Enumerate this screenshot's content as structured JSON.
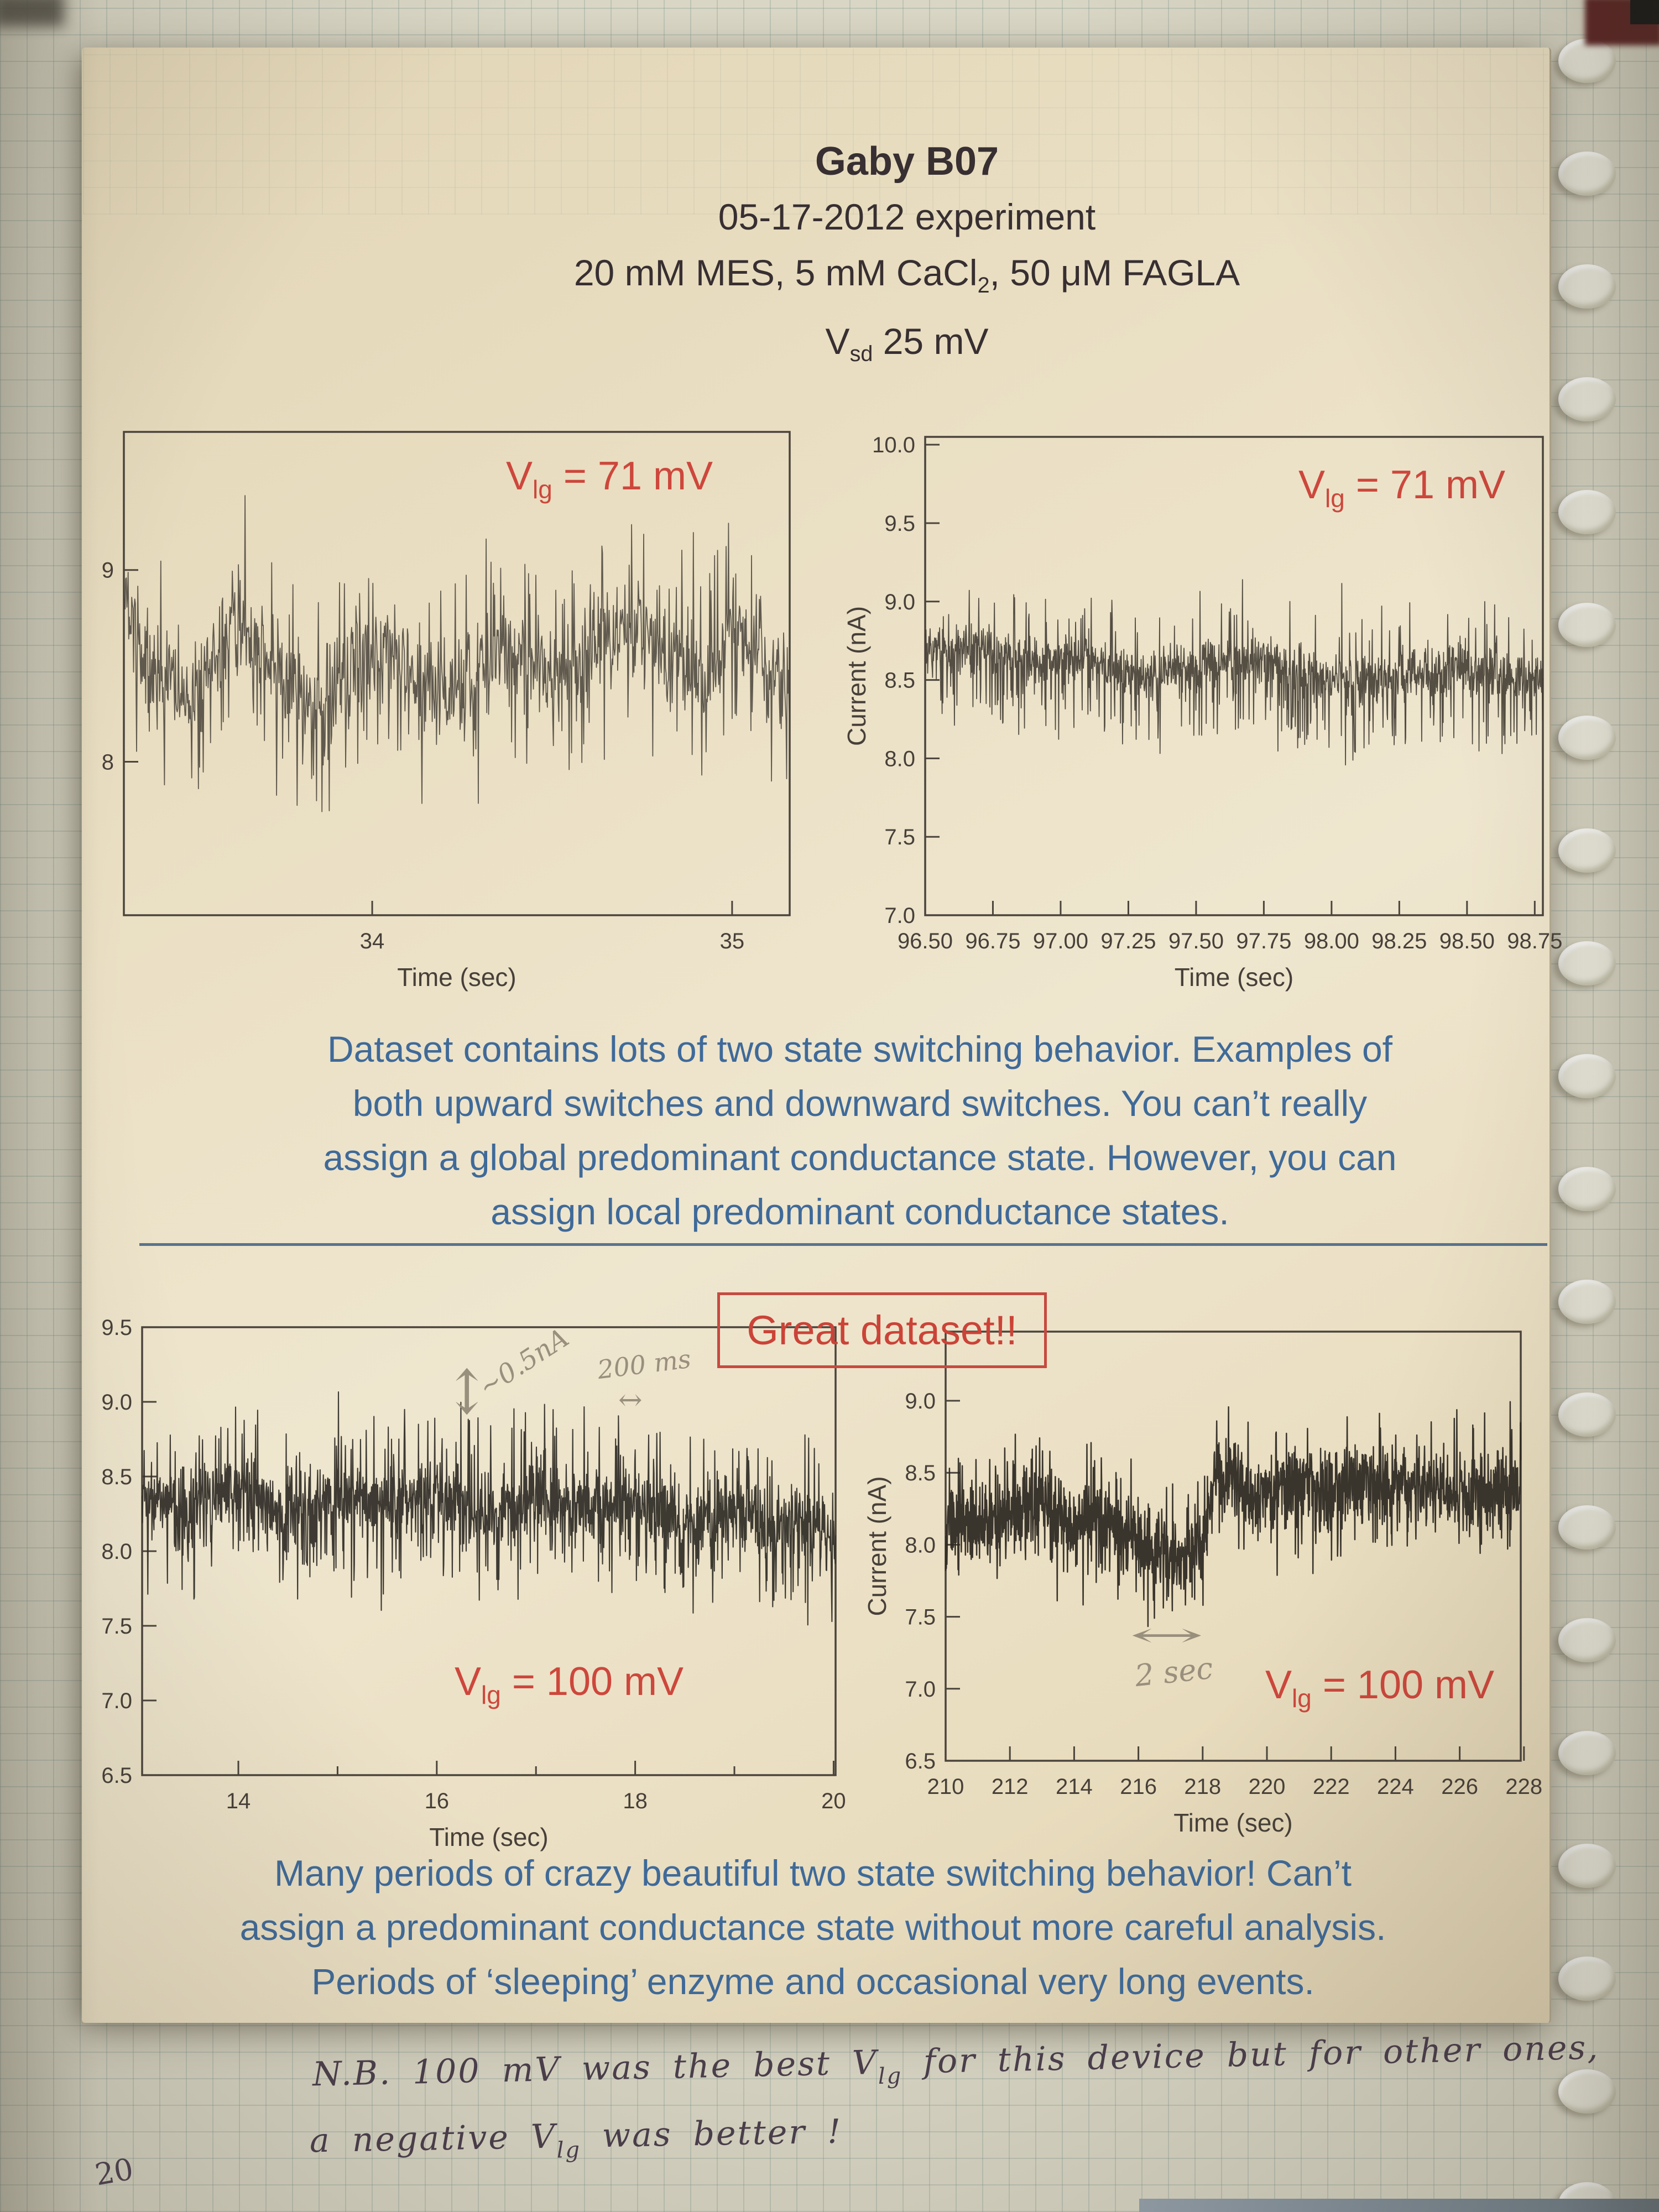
{
  "header": {
    "line1": "Gaby B07",
    "line2": "05-17-2012 experiment",
    "line3_a": "20 mM MES, 5 mM CaCl",
    "line3_sub": "2",
    "line3_b": ", 50 μM FAGLA",
    "line4_a": "V",
    "line4_sub": "sd",
    "line4_b": " 25 mV"
  },
  "paragraph1_lines": [
    "Dataset contains lots of two state switching behavior. Examples of",
    "both upward switches and downward switches. You can’t really",
    "assign a global predominant conductance state. However, you can",
    "assign local predominant conductance states."
  ],
  "callout": "Great dataset!!",
  "paragraph2_lines": [
    "Many periods of crazy beautiful two state switching behavior! Can’t",
    "assign a predominant conductance state without more careful analysis.",
    "Periods of ‘sleeping’ enzyme and occasional very long events."
  ],
  "pencil": {
    "amp": "~0.5nA",
    "updown_arrow": "↕",
    "ms": "200 ms",
    "lr_arrow_small": "↔",
    "lr_arrow_long": "↔",
    "sec": "2 sec"
  },
  "handwriting": {
    "line1_a": "N.B. 100 mV was the best V",
    "line1_sub": "lg",
    "line1_b": " for this device but for other ones,",
    "line2_a": "a negative V",
    "line2_sub": "lg",
    "line2_b": " was better !",
    "page_number": "20"
  },
  "colors": {
    "accent_red": "#cd473c",
    "caption_blue": "#3f6a99",
    "sheet_cream": "#eadfc3",
    "grid_paper": "#d9d6c5",
    "ink": "#4a3e4c"
  },
  "chart_data": [
    {
      "type": "line",
      "name": "top-left-trace",
      "xlabel": "Time (sec)",
      "ylabel": "",
      "xlim": [
        33.31,
        35.16
      ],
      "ylim": [
        7.2,
        9.72
      ],
      "xtick_labels": [
        "34",
        "35"
      ],
      "xtick_values": [
        34,
        35
      ],
      "minor_xticks": [],
      "ytick_labels": [
        "9",
        "8"
      ],
      "ytick_values": [
        9,
        8
      ],
      "vlg": {
        "v": "V",
        "sub": "lg",
        "rest": " = 71 mV"
      },
      "series": {
        "baseline": [
          [
            33.31,
            8.9
          ],
          [
            33.38,
            8.45
          ],
          [
            33.5,
            8.35
          ],
          [
            33.62,
            8.75
          ],
          [
            33.72,
            8.5
          ],
          [
            33.82,
            8.3
          ],
          [
            33.95,
            8.45
          ],
          [
            34.05,
            8.55
          ],
          [
            34.12,
            8.4
          ],
          [
            34.22,
            8.35
          ],
          [
            34.32,
            8.5
          ],
          [
            34.42,
            8.55
          ],
          [
            34.52,
            8.45
          ],
          [
            34.62,
            8.65
          ],
          [
            34.72,
            8.7
          ],
          [
            34.82,
            8.55
          ],
          [
            34.92,
            8.45
          ],
          [
            35.0,
            8.75
          ],
          [
            35.08,
            8.55
          ],
          [
            35.16,
            8.3
          ]
        ],
        "noise": 0.12,
        "spike_rate": 0.22,
        "spike_size": 0.5,
        "down_bias": 0.5,
        "points": 1100
      }
    },
    {
      "type": "line",
      "name": "top-right-trace",
      "xlabel": "Time (sec)",
      "ylabel": "Current (nA)",
      "xlim": [
        96.5,
        98.78
      ],
      "ylim": [
        7.0,
        10.05
      ],
      "xtick_labels": [
        "96.50",
        "96.75",
        "97.00",
        "97.25",
        "97.50",
        "97.75",
        "98.00",
        "98.25",
        "98.50",
        "98.75"
      ],
      "xtick_values": [
        96.5,
        96.75,
        97.0,
        97.25,
        97.5,
        97.75,
        98.0,
        98.25,
        98.5,
        98.75
      ],
      "minor_xticks": [],
      "ytick_labels": [
        "10.0",
        "9.5",
        "9.0",
        "8.5",
        "8.0",
        "7.5",
        "7.0"
      ],
      "ytick_values": [
        10.0,
        9.5,
        9.0,
        8.5,
        8.0,
        7.5,
        7.0
      ],
      "vlg": {
        "v": "V",
        "sub": "lg",
        "rest": " = 71 mV"
      },
      "series": {
        "baseline": [
          [
            96.5,
            8.68
          ],
          [
            96.7,
            8.72
          ],
          [
            96.9,
            8.6
          ],
          [
            97.1,
            8.65
          ],
          [
            97.3,
            8.55
          ],
          [
            97.5,
            8.6
          ],
          [
            97.7,
            8.65
          ],
          [
            97.9,
            8.55
          ],
          [
            98.1,
            8.5
          ],
          [
            98.3,
            8.55
          ],
          [
            98.5,
            8.6
          ],
          [
            98.6,
            8.5
          ],
          [
            98.78,
            8.55
          ]
        ],
        "noise": 0.075,
        "spike_rate": 0.2,
        "spike_size": 0.45,
        "down_bias": 0.75,
        "points": 1500
      }
    },
    {
      "type": "line",
      "name": "bottom-left-trace",
      "xlabel": "Time (sec)",
      "ylabel": "",
      "xlim": [
        13.03,
        20.02
      ],
      "ylim": [
        6.5,
        9.5
      ],
      "xtick_labels": [
        "14",
        "16",
        "18",
        "20"
      ],
      "xtick_values": [
        14,
        16,
        18,
        20
      ],
      "minor_xticks": [
        15,
        17,
        19
      ],
      "ytick_labels": [
        "9.5",
        "9.0",
        "8.5",
        "8.0",
        "7.5",
        "7.0",
        "6.5"
      ],
      "ytick_values": [
        9.5,
        9.0,
        8.5,
        8.0,
        7.5,
        7.0,
        6.5
      ],
      "vlg": {
        "v": "V",
        "sub": "lg",
        "rest": " = 100 mV"
      },
      "series": {
        "baseline": [
          [
            13.03,
            8.35
          ],
          [
            13.5,
            8.3
          ],
          [
            14,
            8.4
          ],
          [
            14.5,
            8.25
          ],
          [
            15,
            8.35
          ],
          [
            15.5,
            8.3
          ],
          [
            16,
            8.4
          ],
          [
            16.5,
            8.25
          ],
          [
            17,
            8.35
          ],
          [
            17.5,
            8.3
          ],
          [
            18,
            8.35
          ],
          [
            18.5,
            8.2
          ],
          [
            18.9,
            8.3
          ],
          [
            19.3,
            8.15
          ],
          [
            19.6,
            8.25
          ],
          [
            20.02,
            8.05
          ]
        ],
        "noise": 0.11,
        "spike_rate": 0.28,
        "spike_size": 0.5,
        "down_bias": 0.65,
        "points": 1700
      }
    },
    {
      "type": "line",
      "name": "bottom-right-trace",
      "xlabel": "Time (sec)",
      "ylabel": "Current (nA)",
      "xlim": [
        210,
        227.9
      ],
      "ylim": [
        6.5,
        9.48
      ],
      "xtick_labels": [
        "210",
        "212",
        "214",
        "216",
        "218",
        "220",
        "222",
        "224",
        "226",
        "228"
      ],
      "xtick_values": [
        210,
        212,
        214,
        216,
        218,
        220,
        222,
        224,
        226,
        228
      ],
      "minor_xticks": [],
      "ytick_labels": [
        "9.0",
        "8.5",
        "8.0",
        "7.5",
        "7.0",
        "6.5"
      ],
      "ytick_values": [
        9.0,
        8.5,
        8.0,
        7.5,
        7.0,
        6.5
      ],
      "vlg": {
        "v": "V",
        "sub": "lg",
        "rest": " = 100 mV"
      },
      "series": {
        "baseline": [
          [
            210,
            8.2
          ],
          [
            211,
            8.15
          ],
          [
            212,
            8.2
          ],
          [
            212.8,
            8.3
          ],
          [
            213.4,
            8.2
          ],
          [
            214,
            8.1
          ],
          [
            214.6,
            8.2
          ],
          [
            215.2,
            8.15
          ],
          [
            216,
            8.0
          ],
          [
            216.6,
            7.92
          ],
          [
            217.4,
            7.9
          ],
          [
            218.0,
            8.05
          ],
          [
            218.4,
            8.5
          ],
          [
            219.2,
            8.4
          ],
          [
            220,
            8.35
          ],
          [
            221,
            8.42
          ],
          [
            222,
            8.35
          ],
          [
            223,
            8.42
          ],
          [
            224,
            8.38
          ],
          [
            225,
            8.42
          ],
          [
            226,
            8.35
          ],
          [
            227,
            8.42
          ],
          [
            227.9,
            8.38
          ]
        ],
        "noise": 0.12,
        "spike_rate": 0.22,
        "spike_size": 0.4,
        "down_bias": 0.6,
        "points": 1800
      }
    }
  ]
}
